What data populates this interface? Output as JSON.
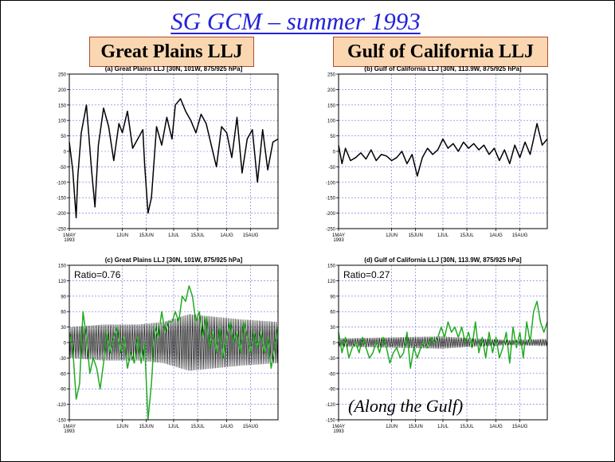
{
  "slide": {
    "title": "SG GCM – summer 1993",
    "left_region": "Great Plains LLJ",
    "right_region": "Gulf of California LLJ",
    "caption": "(Along the Gulf)"
  },
  "chart_data": [
    {
      "id": "a",
      "type": "line",
      "title": "(a) Great Plains LLJ    [30N, 101W, 875/925 hPa]",
      "ylim": [
        -250,
        250
      ],
      "yticks": [
        -250,
        -200,
        -150,
        -100,
        -50,
        0,
        50,
        100,
        150,
        200,
        250
      ],
      "xticks": [
        "1MAY\n1993",
        "1JUN",
        "15JUN",
        "1JUL",
        "15JUL",
        "1AUG",
        "15AUG"
      ],
      "xtick_days": [
        0,
        31,
        45,
        61,
        75,
        92,
        106
      ],
      "xlim_days": [
        0,
        122
      ],
      "grid": true,
      "ratio": "",
      "series": [
        {
          "color": "#000000",
          "width": 1.5,
          "x": [
            0,
            2,
            4,
            5,
            7,
            10,
            13,
            15,
            17,
            20,
            23,
            26,
            29,
            31,
            34,
            37,
            40,
            43,
            44,
            46,
            48,
            51,
            54,
            57,
            60,
            62,
            65,
            68,
            71,
            74,
            77,
            80,
            83,
            86,
            89,
            92,
            95,
            98,
            101,
            104,
            107,
            110,
            113,
            116,
            119,
            122
          ],
          "y": [
            30,
            -60,
            -215,
            -80,
            60,
            150,
            -60,
            -180,
            20,
            140,
            80,
            -30,
            90,
            60,
            130,
            10,
            40,
            70,
            -40,
            -200,
            -150,
            80,
            20,
            110,
            40,
            150,
            170,
            130,
            100,
            60,
            120,
            90,
            20,
            -50,
            80,
            60,
            -20,
            110,
            -70,
            40,
            70,
            -100,
            70,
            -60,
            30,
            40
          ]
        }
      ]
    },
    {
      "id": "b",
      "type": "line",
      "title": "(b) Gulf of California LLJ   [30N, 113.9W, 875/925 hPa]",
      "ylim": [
        -250,
        250
      ],
      "yticks": [
        -250,
        -200,
        -150,
        -100,
        -50,
        0,
        50,
        100,
        150,
        200,
        250
      ],
      "xticks": [
        "1MAY\n1993",
        "1JUN",
        "15JUN",
        "1JUL",
        "15JUL",
        "1AUG",
        "15AUG"
      ],
      "xtick_days": [
        0,
        31,
        45,
        61,
        75,
        92,
        106
      ],
      "xlim_days": [
        0,
        122
      ],
      "grid": true,
      "ratio": "",
      "series": [
        {
          "color": "#000000",
          "width": 1.5,
          "x": [
            0,
            2,
            4,
            7,
            10,
            13,
            16,
            19,
            22,
            25,
            28,
            31,
            34,
            37,
            40,
            43,
            46,
            49,
            52,
            55,
            58,
            61,
            64,
            67,
            70,
            73,
            76,
            79,
            82,
            85,
            88,
            91,
            94,
            97,
            100,
            103,
            106,
            109,
            112,
            114,
            116,
            119,
            122
          ],
          "y": [
            20,
            -40,
            10,
            -30,
            -20,
            -5,
            -25,
            5,
            -30,
            -10,
            -15,
            -30,
            -20,
            0,
            -40,
            -10,
            -80,
            -20,
            10,
            -10,
            5,
            40,
            10,
            25,
            0,
            30,
            10,
            25,
            5,
            20,
            -10,
            10,
            -30,
            5,
            -40,
            20,
            -20,
            30,
            -10,
            40,
            90,
            20,
            40
          ]
        }
      ]
    },
    {
      "id": "c",
      "type": "line",
      "title": "(c) Great Plains LLJ    [30N, 101W, 875/925 hPa]",
      "ylim": [
        -150,
        150
      ],
      "yticks": [
        -150,
        -120,
        -90,
        -60,
        -30,
        0,
        30,
        60,
        90,
        120,
        150
      ],
      "xticks": [
        "1MAY\n1993",
        "1JUN",
        "15JUN",
        "1JUL",
        "15JUL",
        "1AUG",
        "15AUG"
      ],
      "xtick_days": [
        0,
        31,
        45,
        61,
        75,
        92,
        106
      ],
      "xlim_days": [
        0,
        122
      ],
      "grid": true,
      "ratio": "Ratio=0.76",
      "diurnal_amplitude": {
        "x": [
          0,
          20,
          40,
          55,
          70,
          85,
          100,
          122
        ],
        "amp": [
          30,
          35,
          35,
          40,
          55,
          50,
          45,
          40
        ]
      },
      "series": [
        {
          "color": "#22aa22",
          "width": 1.5,
          "x": [
            0,
            2,
            4,
            6,
            8,
            10,
            12,
            14,
            16,
            18,
            20,
            22,
            24,
            26,
            28,
            30,
            32,
            34,
            36,
            38,
            40,
            42,
            44,
            46,
            48,
            50,
            52,
            54,
            56,
            58,
            60,
            62,
            64,
            66,
            68,
            70,
            72,
            74,
            76,
            78,
            80,
            82,
            84,
            86,
            88,
            90,
            92,
            94,
            96,
            98,
            100,
            102,
            104,
            106,
            108,
            110,
            112,
            114,
            116,
            118,
            120,
            122
          ],
          "y": [
            20,
            -10,
            -110,
            -80,
            60,
            10,
            -60,
            -30,
            -50,
            -90,
            -40,
            20,
            -20,
            10,
            30,
            -20,
            10,
            -50,
            -20,
            -40,
            10,
            -40,
            0,
            -150,
            -80,
            30,
            10,
            60,
            20,
            40,
            40,
            60,
            40,
            90,
            80,
            110,
            90,
            40,
            60,
            10,
            50,
            -10,
            20,
            -20,
            30,
            -30,
            10,
            40,
            0,
            20,
            -20,
            40,
            10,
            -20,
            20,
            -10,
            20,
            -20,
            10,
            -50,
            -10,
            30
          ]
        }
      ]
    },
    {
      "id": "d",
      "type": "line",
      "title": "(d) Gulf of California LLJ   [30N, 113.9W, 875/925 hPa]",
      "ylim": [
        -150,
        150
      ],
      "yticks": [
        -150,
        -120,
        -90,
        -60,
        -30,
        0,
        30,
        60,
        90,
        120,
        150
      ],
      "xticks": [
        "1MAY\n1993",
        "1JUN",
        "15JUN",
        "1JUL",
        "15JUL",
        "1AUG",
        "15AUG"
      ],
      "xtick_days": [
        0,
        31,
        45,
        61,
        75,
        92,
        106
      ],
      "xlim_days": [
        0,
        122
      ],
      "grid": true,
      "ratio": "Ratio=0.27",
      "diurnal_amplitude": {
        "x": [
          0,
          30,
          60,
          80,
          100,
          122
        ],
        "amp": [
          8,
          10,
          12,
          8,
          5,
          7
        ]
      },
      "series": [
        {
          "color": "#22aa22",
          "width": 1.5,
          "x": [
            0,
            2,
            4,
            6,
            8,
            10,
            12,
            14,
            16,
            18,
            20,
            22,
            24,
            26,
            28,
            30,
            32,
            34,
            36,
            38,
            40,
            42,
            44,
            46,
            48,
            50,
            52,
            54,
            56,
            58,
            60,
            62,
            64,
            66,
            68,
            70,
            72,
            74,
            76,
            78,
            80,
            82,
            84,
            86,
            88,
            90,
            92,
            94,
            96,
            98,
            100,
            102,
            104,
            106,
            108,
            110,
            112,
            114,
            116,
            118,
            120,
            122
          ],
          "y": [
            20,
            -20,
            10,
            -30,
            -10,
            0,
            -20,
            10,
            -10,
            -30,
            -20,
            0,
            -20,
            10,
            -10,
            -40,
            -20,
            -10,
            -30,
            -20,
            20,
            -50,
            -10,
            -30,
            -10,
            0,
            -10,
            10,
            0,
            10,
            30,
            10,
            40,
            20,
            30,
            10,
            30,
            0,
            20,
            -10,
            40,
            -20,
            10,
            -30,
            20,
            -20,
            10,
            -30,
            -10,
            20,
            -40,
            30,
            -10,
            20,
            -30,
            40,
            0,
            60,
            80,
            40,
            20,
            40
          ]
        }
      ]
    }
  ]
}
